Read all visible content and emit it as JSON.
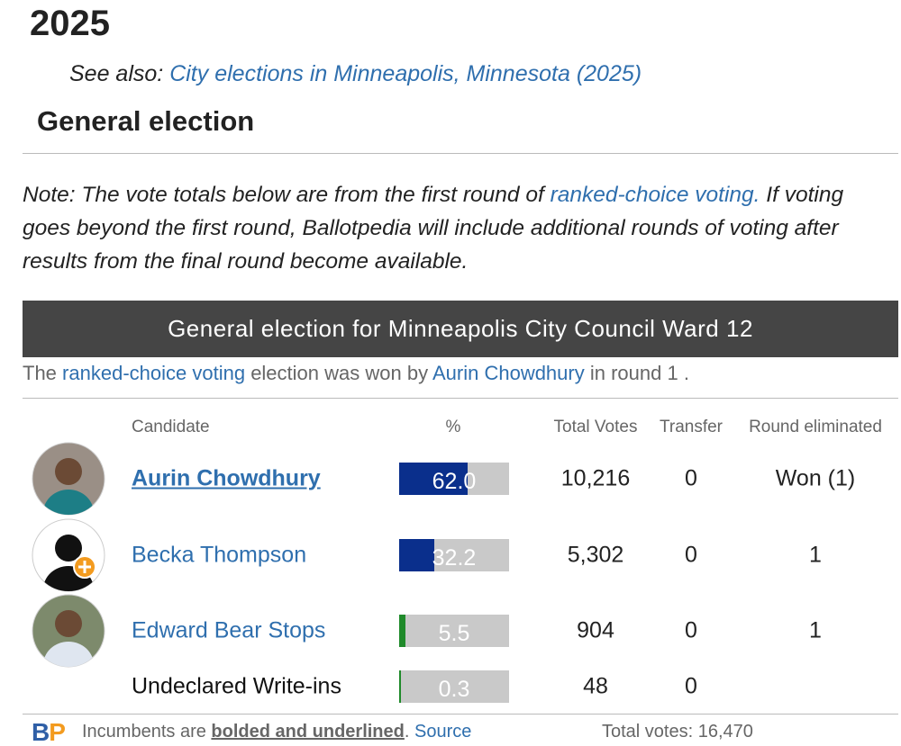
{
  "heading": "2025",
  "see_also": {
    "prefix": "See also:",
    "link": "City elections in Minneapolis, Minnesota (2025)"
  },
  "section_title": "General election",
  "note": {
    "prefix": "Note: The vote totals below are from the first round of",
    "link": "ranked-choice voting.",
    "suffix": "If voting goes beyond the first round, Ballotpedia will include additional rounds of voting after results from the final round become available."
  },
  "table": {
    "title": "General election for Minneapolis City Council Ward 12",
    "summary": {
      "prefix": "The",
      "link1": "ranked-choice voting",
      "middle": "election was won by",
      "link2": "Aurin Chowdhury",
      "suffix": "in round 1 ."
    },
    "columns": [
      "Candidate",
      "%",
      "Total Votes",
      "Transfer",
      "Round eliminated"
    ],
    "rows": [
      {
        "candidate": "Aurin Chowdhury",
        "incumbent": true,
        "pct": 62.0,
        "pct_label": "62.0",
        "color": "#0a2f8c",
        "votes": "10,216",
        "transfer": "0",
        "round": "Won (1)"
      },
      {
        "candidate": "Becka Thompson",
        "pct": 32.2,
        "pct_label": "32.2",
        "color": "#0a2f8c",
        "votes": "5,302",
        "transfer": "0",
        "round": "1"
      },
      {
        "candidate": "Edward Bear Stops",
        "pct": 5.5,
        "pct_label": "5.5",
        "color": "#1f8a2a",
        "votes": "904",
        "transfer": "0",
        "round": "1"
      },
      {
        "candidate": "Undeclared Write-ins",
        "pct": 0.3,
        "pct_label": "0.3",
        "color": "#1f8a2a",
        "votes": "48",
        "transfer": "0"
      }
    ]
  },
  "footer": {
    "logo": "BP",
    "text1": "Incumbents are",
    "bold": "bolded and underlined",
    "period": ".",
    "source": "Source",
    "total": "Total votes: 16,470"
  }
}
